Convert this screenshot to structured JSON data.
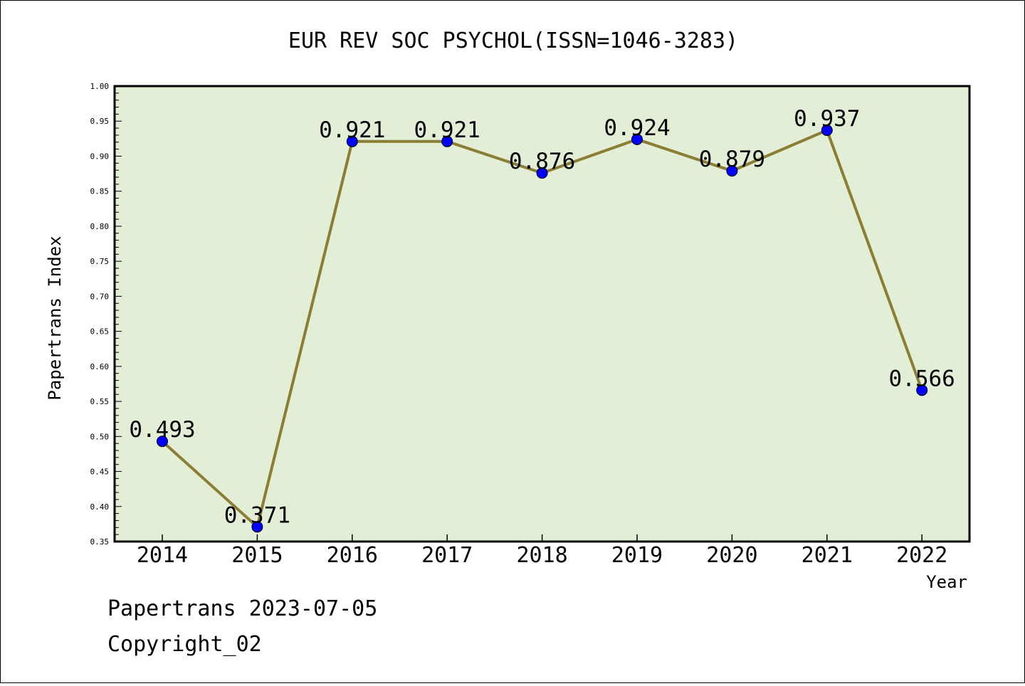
{
  "chart_data": {
    "type": "line",
    "title": "EUR REV SOC PSYCHOL(ISSN=1046-3283)",
    "xlabel": "Year",
    "ylabel": "Papertrans Index",
    "categories": [
      "2014",
      "2015",
      "2016",
      "2017",
      "2018",
      "2019",
      "2020",
      "2021",
      "2022"
    ],
    "series": [
      {
        "values": [
          0.493,
          0.371,
          0.921,
          0.921,
          0.876,
          0.924,
          0.879,
          0.937,
          0.566
        ],
        "labels": [
          "0.493",
          "0.371",
          "0.921",
          "0.921",
          "0.876",
          "0.924",
          "0.879",
          "0.937",
          "0.566"
        ]
      }
    ],
    "ylim": [
      0.35,
      1.0
    ],
    "yticks": [
      "0.35",
      "0.40",
      "0.45",
      "0.50",
      "0.55",
      "0.60",
      "0.65",
      "0.70",
      "0.75",
      "0.80",
      "0.85",
      "0.90",
      "0.95",
      "1.00"
    ],
    "grid": false,
    "colors": {
      "plot_background": "#e2efd6",
      "line": "#8c7d35",
      "marker": "#0000ff"
    }
  },
  "footer": {
    "line1": "Papertrans 2023-07-05",
    "line2": "Copyright_02"
  }
}
